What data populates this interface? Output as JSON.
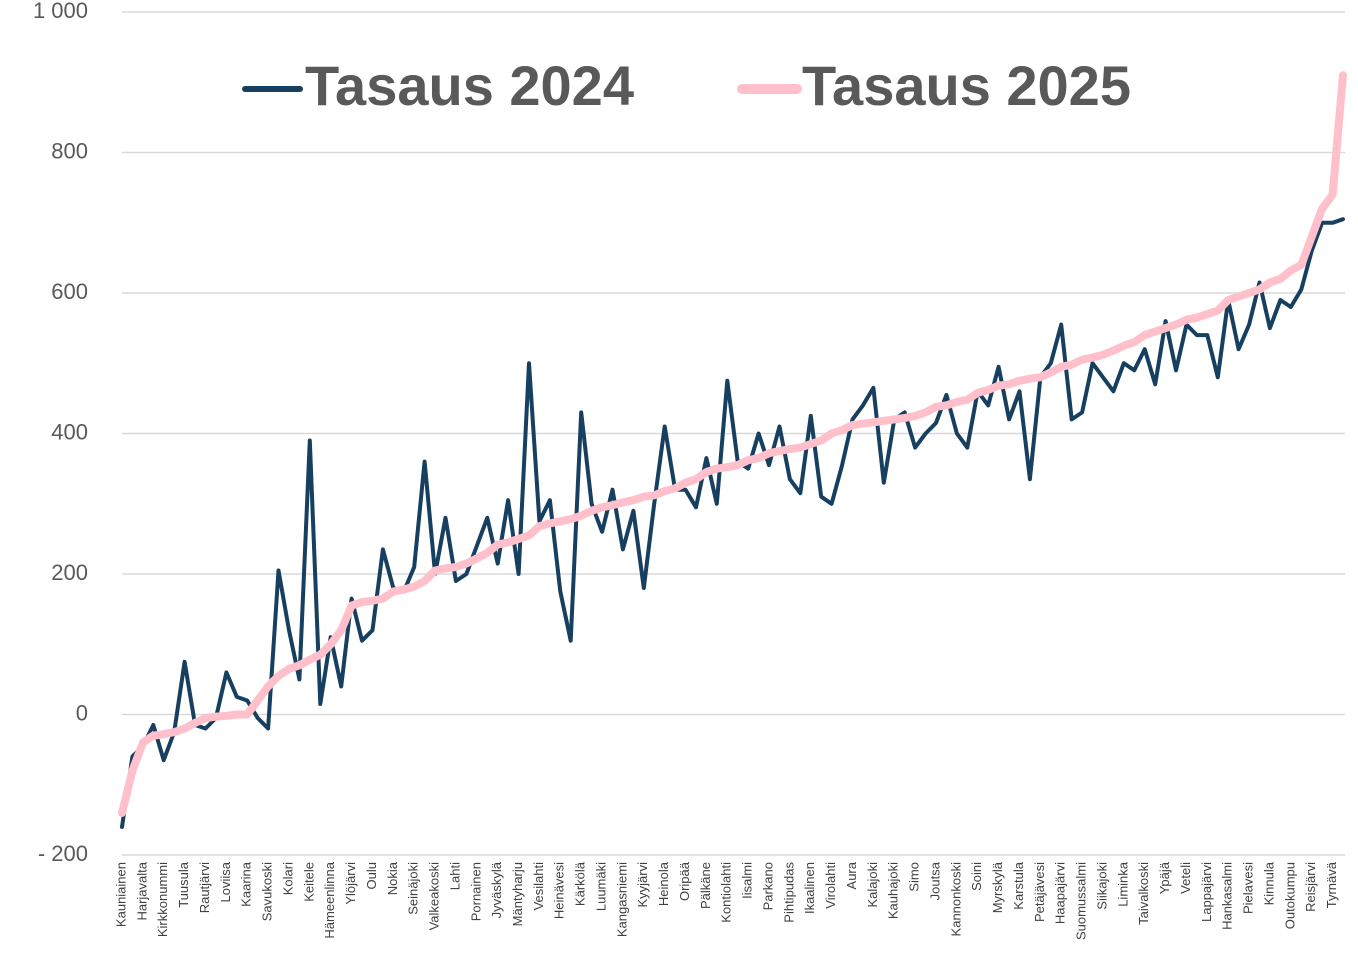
{
  "chart_data": {
    "type": "line",
    "categories": [
      "Kauniainen",
      null,
      "Harjavalta",
      null,
      "Kirkkonummi",
      null,
      "Tuusula",
      null,
      "Rautjärvi",
      null,
      "Loviisa",
      null,
      "Kaarina",
      null,
      "Savukoski",
      null,
      "Kolari",
      null,
      "Keitele",
      null,
      "Hämeenlinna",
      null,
      "Ylöjärvi",
      null,
      "Oulu",
      null,
      "Nokia",
      null,
      "Seinäjoki",
      null,
      "Valkeakoski",
      null,
      "Lahti",
      null,
      "Pornainen",
      null,
      "Jyväskylä",
      null,
      "Mäntyharju",
      null,
      "Vesilahti",
      null,
      "Heinävesi",
      null,
      "Kärkölä",
      null,
      "Luumäki",
      null,
      "Kangasniemi",
      null,
      "Kyyjärvi",
      null,
      "Heinola",
      null,
      "Oripää",
      null,
      "Pälkäne",
      null,
      "Kontiolahti",
      null,
      "Iisalmi",
      null,
      "Parkano",
      null,
      "Pihtipudas",
      null,
      "Ikaalinen",
      null,
      "Virolahti",
      null,
      "Aura",
      null,
      "Kalajoki",
      null,
      "Kauhajoki",
      null,
      "Simo",
      null,
      "Joutsa",
      null,
      "Kannonkoski",
      null,
      "Soini",
      null,
      "Myrskylä",
      null,
      "Karstula",
      null,
      "Petäjävesi",
      null,
      "Haapajärvi",
      null,
      "Suomussalmi",
      null,
      "Siikajoki",
      null,
      "Liminka",
      null,
      "Taivalkoski",
      null,
      "Ypäjä",
      null,
      "Veteli",
      null,
      "Lappajärvi",
      null,
      "Hankasalmi",
      null,
      "Pielavesi",
      null,
      "Kinnula",
      null,
      "Outokumpu",
      null,
      "Reisjärvi",
      null,
      "Tyrnävä",
      null
    ],
    "series": [
      {
        "name": "Tasaus 2024",
        "color": "#173f5f",
        "width": 4,
        "values": [
          -160,
          -60,
          -45,
          -15,
          -65,
          -25,
          75,
          -15,
          -20,
          -5,
          60,
          25,
          20,
          -5,
          -20,
          205,
          120,
          50,
          390,
          15,
          110,
          40,
          165,
          105,
          120,
          235,
          180,
          175,
          210,
          360,
          200,
          280,
          190,
          200,
          240,
          280,
          215,
          305,
          200,
          500,
          275,
          305,
          175,
          105,
          430,
          300,
          260,
          320,
          235,
          290,
          180,
          300,
          410,
          320,
          320,
          295,
          365,
          300,
          475,
          360,
          350,
          400,
          355,
          410,
          335,
          315,
          425,
          310,
          300,
          355,
          420,
          440,
          465,
          330,
          420,
          430,
          380,
          400,
          415,
          455,
          400,
          380,
          460,
          440,
          495,
          420,
          460,
          335,
          480,
          500,
          555,
          420,
          430,
          500,
          480,
          460,
          500,
          490,
          520,
          470,
          560,
          490,
          555,
          540,
          540,
          480,
          590,
          520,
          555,
          615,
          550,
          590,
          580,
          605,
          660,
          700,
          700,
          705
        ]
      },
      {
        "name": "Tasaus 2025",
        "color": "#ffc0cb",
        "width": 8,
        "values": [
          -140,
          -80,
          -40,
          -30,
          -28,
          -25,
          -20,
          -12,
          -5,
          -3,
          -2,
          0,
          0,
          20,
          40,
          55,
          65,
          70,
          78,
          85,
          100,
          120,
          155,
          160,
          162,
          165,
          175,
          178,
          182,
          190,
          205,
          208,
          210,
          215,
          222,
          230,
          242,
          245,
          250,
          255,
          268,
          272,
          275,
          278,
          283,
          290,
          295,
          298,
          302,
          305,
          310,
          312,
          318,
          322,
          330,
          335,
          345,
          350,
          352,
          355,
          362,
          365,
          372,
          375,
          378,
          380,
          385,
          390,
          400,
          405,
          412,
          414,
          416,
          418,
          420,
          422,
          425,
          430,
          438,
          440,
          445,
          448,
          458,
          462,
          468,
          470,
          475,
          478,
          480,
          487,
          495,
          498,
          505,
          508,
          512,
          518,
          525,
          530,
          540,
          545,
          550,
          555,
          562,
          565,
          570,
          575,
          590,
          595,
          600,
          605,
          615,
          620,
          632,
          640,
          680,
          720,
          740,
          910
        ]
      }
    ],
    "ylim": [
      -200,
      1000
    ],
    "yticks": [
      {
        "value": -200,
        "label": "- 200"
      },
      0,
      200,
      400,
      600,
      800,
      {
        "value": 1000,
        "label": "1 000"
      }
    ],
    "negative_tick_color": "#c00000",
    "grid": true
  }
}
